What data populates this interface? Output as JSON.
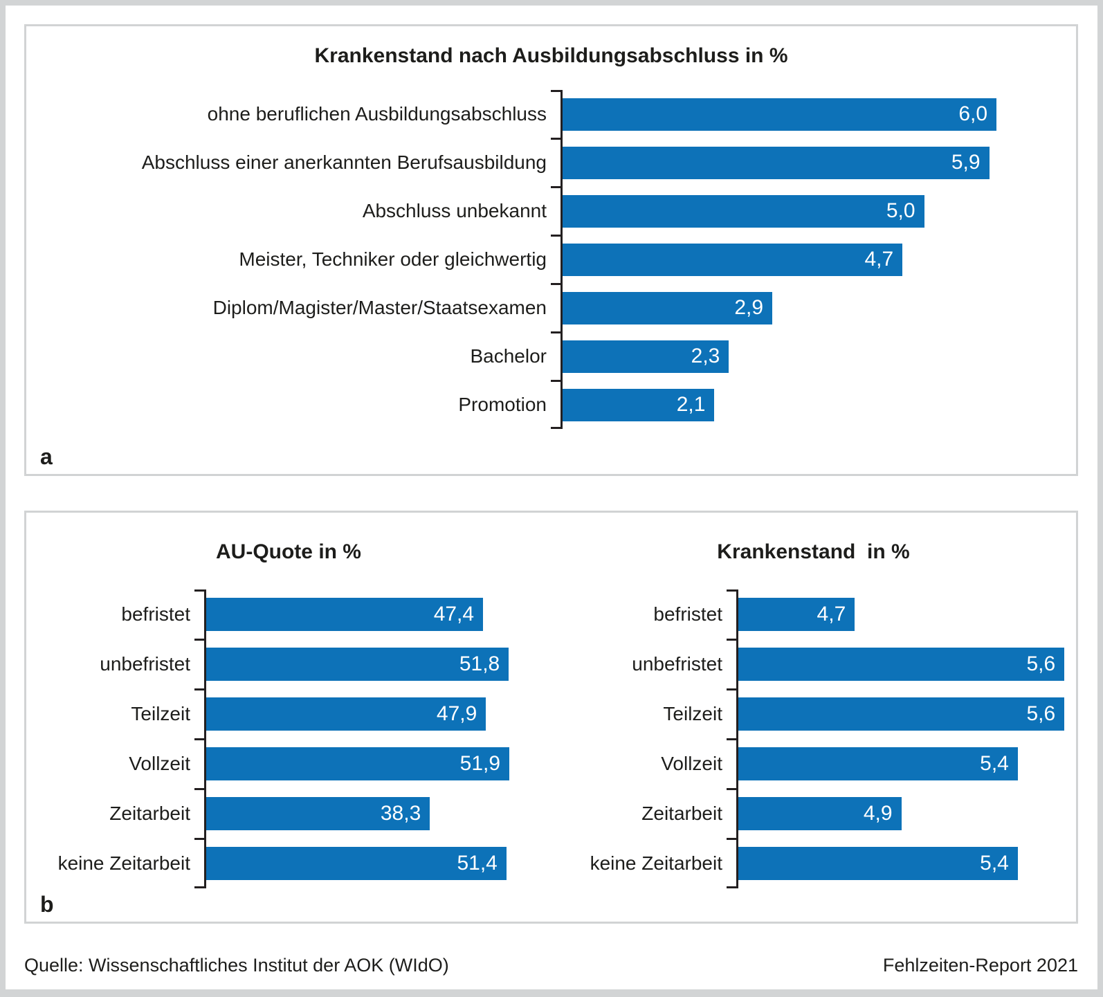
{
  "colors": {
    "bar_blue": "#0d72b8",
    "frame_gray": "#d2d4d5",
    "axis_black": "#231f20",
    "text_dark": "#1d1d1b",
    "value_label_white": "#ffffff"
  },
  "chart_data": [
    {
      "id": "a",
      "type": "bar",
      "orientation": "horizontal",
      "title": "Krankenstand nach Ausbildungsabschluss in %",
      "categories": [
        "ohne beruflichen Ausbildungsabschluss",
        "Abschluss einer anerkannten Berufsausbildung",
        "Abschluss unbekannt",
        "Meister, Techniker oder gleichwertig",
        "Diplom/Magister/Master/Staatsexamen",
        "Bachelor",
        "Promotion"
      ],
      "values": [
        6.0,
        5.9,
        5.0,
        4.7,
        2.9,
        2.3,
        2.1
      ],
      "value_labels": [
        "6,0",
        "5,9",
        "5,0",
        "4,7",
        "2,9",
        "2,3",
        "2,1"
      ],
      "xlim": [
        0,
        7.1
      ],
      "grid": false,
      "legend": false
    },
    {
      "id": "b_left",
      "type": "bar",
      "orientation": "horizontal",
      "title": "AU-Quote in %",
      "categories": [
        "befristet",
        "unbefristet",
        "Teilzeit",
        "Vollzeit",
        "Zeitarbeit",
        "keine Zeitarbeit"
      ],
      "values": [
        47.4,
        51.8,
        47.9,
        51.9,
        38.3,
        51.4
      ],
      "value_labels": [
        "47,4",
        "51,8",
        "47,9",
        "51,9",
        "38,3",
        "51,4"
      ],
      "xlim": [
        0,
        59
      ],
      "grid": false,
      "legend": false
    },
    {
      "id": "b_right",
      "type": "bar",
      "orientation": "horizontal",
      "title": "Krankenstand  in %",
      "categories": [
        "befristet",
        "unbefristet",
        "Teilzeit",
        "Vollzeit",
        "Zeitarbeit",
        "keine Zeitarbeit"
      ],
      "values": [
        4.7,
        5.6,
        5.6,
        5.4,
        4.9,
        5.4
      ],
      "value_labels": [
        "4,7",
        "5,6",
        "5,6",
        "5,4",
        "4,9",
        "5,4"
      ],
      "xlim": [
        4.2,
        5.65
      ],
      "grid": false,
      "legend": false
    }
  ],
  "panel_labels": {
    "a": "a",
    "b": "b"
  },
  "footer": {
    "source": "Quelle: Wissenschaftliches Institut der AOK (WIdO)",
    "report": "Fehlzeiten-Report 2021"
  }
}
